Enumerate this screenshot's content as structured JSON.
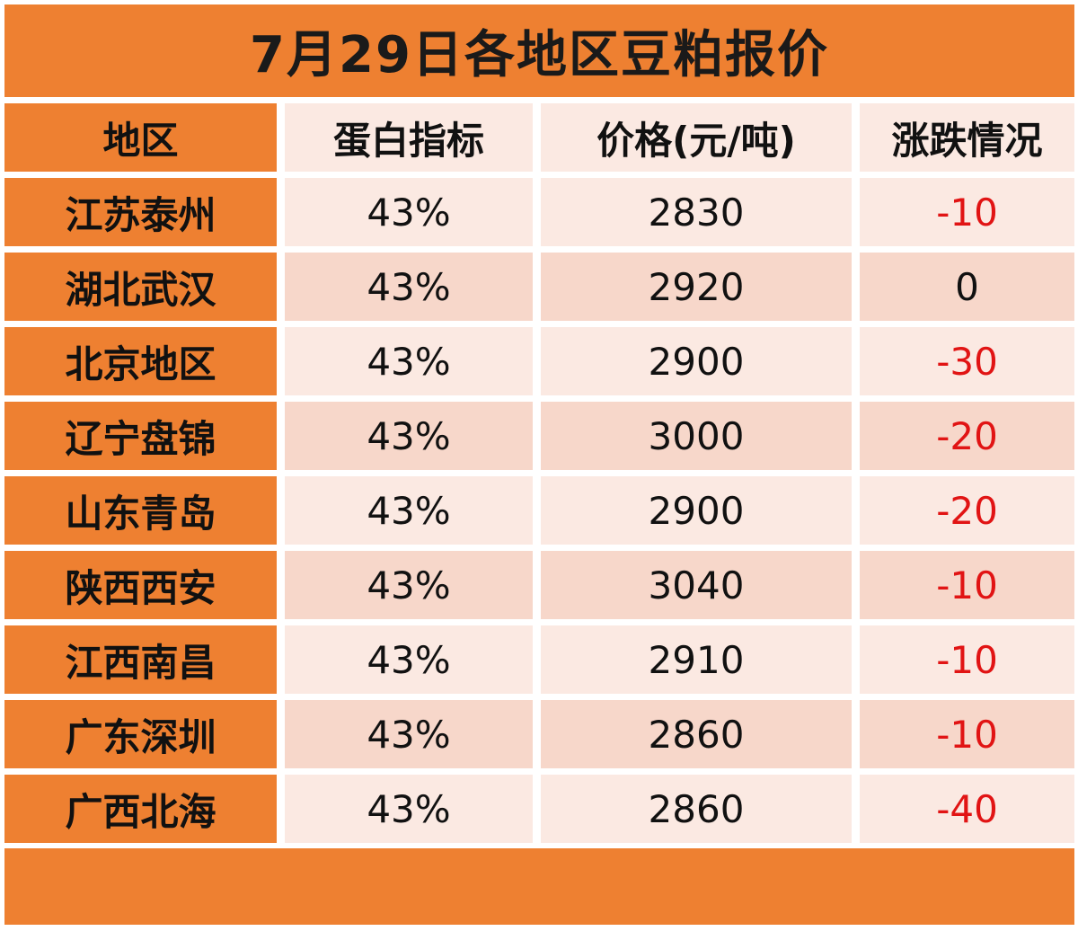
{
  "title": "7月29日各地区豆粕报价",
  "headers": [
    "地区",
    "蛋白指标",
    "价格(元/吨)",
    "涨跌情况"
  ],
  "rows": [
    {
      "region": "江苏泰州",
      "protein": "43%",
      "price": "2830",
      "change": "-10"
    },
    {
      "region": "湖北武汉",
      "protein": "43%",
      "price": "2920",
      "change": "0"
    },
    {
      "region": "北京地区",
      "protein": "43%",
      "price": "2900",
      "change": "-30"
    },
    {
      "region": "辽宁盘锦",
      "protein": "43%",
      "price": "3000",
      "change": "-20"
    },
    {
      "region": "山东青岛",
      "protein": "43%",
      "price": "2900",
      "change": "-20"
    },
    {
      "region": "陕西西安",
      "protein": "43%",
      "price": "3040",
      "change": "-10"
    },
    {
      "region": "江西南昌",
      "protein": "43%",
      "price": "2910",
      "change": "-10"
    },
    {
      "region": "广东深圳",
      "protein": "43%",
      "price": "2860",
      "change": "-10"
    },
    {
      "region": "广西北海",
      "protein": "43%",
      "price": "2860",
      "change": "-40"
    }
  ],
  "colors": {
    "accent": "#ee8031",
    "row_light": "#fbe9e2",
    "row_dark": "#f7d7ca",
    "negative": "#e11414"
  }
}
